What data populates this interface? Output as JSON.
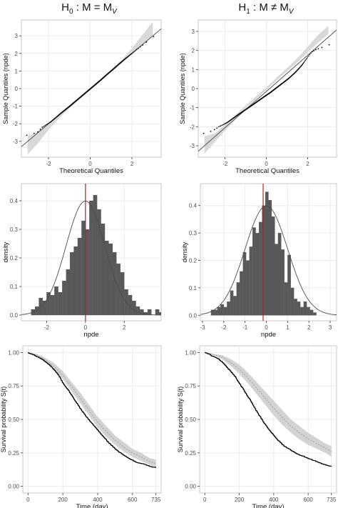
{
  "figure": {
    "col_titles": [
      {
        "base": "H",
        "sub": "0",
        "rest": " : M = M",
        "sub2": "V"
      },
      {
        "base": "H",
        "sub": "1",
        "rest": " : M ≠ M",
        "sub2": "V"
      }
    ]
  },
  "colors": {
    "panel_bg": "#ffffff",
    "grid": "#ebebeb",
    "ribbon": "#d9d9d9",
    "points": "#000000",
    "refline": "#4d4d4d",
    "bars": "#595959",
    "density_curve": "#4d4d4d",
    "vline": "#b22222",
    "ci_band": "#d3d3d3",
    "ci_median": "#9e9e9e",
    "km": "#000000"
  },
  "chart_data": [
    {
      "id": "qq-h0",
      "type": "scatter",
      "xlabel": "Theoretical Quantiles",
      "ylabel": "Sample Quantiles (npde)",
      "xlim": [
        -3.3,
        3.4
      ],
      "ylim": [
        -3.9,
        3.9
      ],
      "xticks": [
        -2,
        0,
        2
      ],
      "yticks": [
        -3,
        -2,
        -1,
        0,
        1,
        2,
        3
      ],
      "grid": true,
      "refline": {
        "slope": 1,
        "intercept": 0
      },
      "band": {
        "x": [
          -3.0,
          -2.5,
          -2.0,
          -1.5,
          -1.0,
          -0.5,
          0,
          0.5,
          1.0,
          1.5,
          2.0,
          2.5,
          3.0
        ],
        "low": [
          -3.75,
          -3.1,
          -2.35,
          -1.7,
          -1.12,
          -0.58,
          -0.06,
          0.44,
          0.93,
          1.42,
          1.95,
          2.45,
          2.95
        ],
        "high": [
          -2.7,
          -2.45,
          -1.95,
          -1.42,
          -0.92,
          -0.43,
          0.06,
          0.58,
          1.1,
          1.62,
          2.3,
          3.05,
          3.8
        ]
      },
      "points_sample": {
        "x": [
          -2.9,
          -2.7,
          -2.5,
          -2.3,
          -2.1,
          -1.9,
          -1.6,
          -1.3,
          -1.0,
          -0.7,
          -0.4,
          -0.1,
          0.2,
          0.5,
          0.8,
          1.1,
          1.4,
          1.7,
          2.0,
          2.2,
          2.4,
          2.6,
          2.8,
          3.0
        ],
        "y": [
          -2.65,
          -2.55,
          -2.45,
          -2.2,
          -2.05,
          -1.9,
          -1.6,
          -1.3,
          -1.02,
          -0.72,
          -0.42,
          -0.12,
          0.18,
          0.48,
          0.8,
          1.1,
          1.42,
          1.72,
          2.0,
          2.2,
          2.38,
          2.55,
          2.75,
          2.95
        ]
      }
    },
    {
      "id": "qq-h1",
      "type": "scatter",
      "xlabel": "Theoretical Quantiles",
      "ylabel": "Sample Quantiles (npde)",
      "xlim": [
        -3.3,
        3.4
      ],
      "ylim": [
        -3.6,
        3.6
      ],
      "xticks": [
        -2,
        0,
        2
      ],
      "yticks": [
        -3,
        -2,
        -1,
        0,
        1,
        2,
        3
      ],
      "grid": true,
      "refline": {
        "slope": 0.95,
        "intercept": -0.15
      },
      "band": {
        "x": [
          -3.0,
          -2.5,
          -2.0,
          -1.5,
          -1.0,
          -0.5,
          0,
          0.5,
          1.0,
          1.5,
          2.0,
          2.5,
          3.0
        ],
        "low": [
          -3.4,
          -2.8,
          -2.2,
          -1.62,
          -1.08,
          -0.58,
          -0.07,
          0.42,
          0.9,
          1.38,
          1.9,
          2.4,
          2.85
        ],
        "high": [
          -2.5,
          -2.35,
          -1.9,
          -1.38,
          -0.88,
          -0.4,
          0.07,
          0.58,
          1.08,
          1.6,
          2.2,
          2.8,
          3.3
        ]
      },
      "points_sample": {
        "x": [
          -2.9,
          -2.7,
          -2.5,
          -2.3,
          -2.1,
          -1.9,
          -1.6,
          -1.3,
          -1.0,
          -0.7,
          -0.4,
          -0.1,
          0.2,
          0.5,
          0.8,
          1.1,
          1.4,
          1.7,
          2.0,
          2.2,
          2.4,
          2.6,
          2.8,
          3.0
        ],
        "y": [
          -2.35,
          -2.25,
          -2.15,
          -2.0,
          -1.9,
          -1.78,
          -1.55,
          -1.32,
          -1.1,
          -0.88,
          -0.65,
          -0.42,
          -0.2,
          0.05,
          0.3,
          0.55,
          0.85,
          1.2,
          1.65,
          1.92,
          2.05,
          2.12,
          2.2,
          2.3
        ]
      }
    },
    {
      "id": "hist-h0",
      "type": "bar",
      "xlabel": "npde",
      "ylabel": "density",
      "xlim": [
        -3.3,
        3.9
      ],
      "ylim": [
        -0.02,
        0.46
      ],
      "xticks": [
        -2,
        0,
        2
      ],
      "yticks": [
        0.0,
        0.1,
        0.2,
        0.3,
        0.4
      ],
      "ytick_labels": [
        "0.0",
        "0.1",
        "0.2",
        "0.3",
        "0.4"
      ],
      "grid": true,
      "bins": {
        "start": -2.8,
        "width": 0.2,
        "values": [
          0.02,
          0.03,
          0.06,
          0.05,
          0.08,
          0.07,
          0.1,
          0.08,
          0.12,
          0.16,
          0.22,
          0.24,
          0.27,
          0.33,
          0.3,
          0.4,
          0.42,
          0.37,
          0.32,
          0.26,
          0.25,
          0.22,
          0.18,
          0.15,
          0.09,
          0.07,
          0.05,
          0.03,
          0.02,
          0.01,
          0.02,
          0.0,
          0.02,
          0.01
        ]
      },
      "curve": {
        "mean": 0.0,
        "sd": 1.0
      },
      "vline": 0.0
    },
    {
      "id": "hist-h1",
      "type": "bar",
      "xlabel": "npde",
      "ylabel": "density",
      "xlim": [
        -3.1,
        3.3
      ],
      "ylim": [
        -0.02,
        0.48
      ],
      "xticks": [
        -3,
        -2,
        -1,
        0,
        1,
        2,
        3
      ],
      "yticks": [
        0.0,
        0.1,
        0.2,
        0.3,
        0.4
      ],
      "ytick_labels": [
        "0.0",
        "0.1",
        "0.2",
        "0.3",
        "0.4"
      ],
      "grid": true,
      "bins": {
        "start": -2.6,
        "width": 0.15,
        "values": [
          0.02,
          0.02,
          0.03,
          0.04,
          0.03,
          0.05,
          0.09,
          0.07,
          0.12,
          0.16,
          0.23,
          0.2,
          0.25,
          0.32,
          0.3,
          0.34,
          0.4,
          0.45,
          0.42,
          0.36,
          0.26,
          0.3,
          0.24,
          0.12,
          0.22,
          0.1,
          0.06,
          0.05,
          0.03,
          0.05,
          0.03,
          0.02,
          0.01,
          0.0,
          0.0,
          0.0
        ]
      },
      "curve": {
        "mean": 0.0,
        "sd": 1.0
      },
      "vline": -0.15
    },
    {
      "id": "surv-h0",
      "type": "line",
      "xlabel": "Time (day)",
      "ylabel": "Survival probability S(t)",
      "xlim": [
        -30,
        765
      ],
      "ylim": [
        -0.05,
        1.05
      ],
      "xticks": [
        0,
        200,
        400,
        600,
        735
      ],
      "yticks": [
        0.0,
        0.25,
        0.5,
        0.75,
        1.0
      ],
      "ytick_labels": [
        "0.00",
        "0.25",
        "0.50",
        "0.75",
        "1.00"
      ],
      "grid": true,
      "km": {
        "x": [
          0,
          20,
          50,
          80,
          100,
          120,
          150,
          180,
          200,
          230,
          260,
          300,
          340,
          380,
          420,
          460,
          500,
          540,
          580,
          620,
          660,
          700,
          735
        ],
        "y": [
          1.0,
          0.99,
          0.97,
          0.95,
          0.93,
          0.91,
          0.87,
          0.82,
          0.77,
          0.72,
          0.66,
          0.58,
          0.51,
          0.45,
          0.39,
          0.33,
          0.28,
          0.24,
          0.21,
          0.18,
          0.17,
          0.15,
          0.14
        ]
      },
      "band": {
        "x": [
          0,
          50,
          100,
          150,
          200,
          250,
          300,
          350,
          400,
          450,
          500,
          550,
          600,
          650,
          700,
          735
        ],
        "low": [
          1.0,
          0.97,
          0.93,
          0.87,
          0.8,
          0.71,
          0.62,
          0.53,
          0.44,
          0.37,
          0.31,
          0.26,
          0.22,
          0.19,
          0.16,
          0.14
        ],
        "high": [
          1.0,
          0.99,
          0.96,
          0.92,
          0.86,
          0.78,
          0.7,
          0.61,
          0.52,
          0.45,
          0.38,
          0.33,
          0.28,
          0.25,
          0.21,
          0.2
        ]
      }
    },
    {
      "id": "surv-h1",
      "type": "line",
      "xlabel": "Time (day)",
      "ylabel": "Survival probability S(t)",
      "xlim": [
        -30,
        765
      ],
      "ylim": [
        -0.05,
        1.05
      ],
      "xticks": [
        0,
        200,
        400,
        600,
        735
      ],
      "yticks": [
        0.0,
        0.25,
        0.5,
        0.75,
        1.0
      ],
      "ytick_labels": [
        "0.00",
        "0.25",
        "0.50",
        "0.75",
        "1.00"
      ],
      "grid": true,
      "km": {
        "x": [
          0,
          20,
          50,
          80,
          100,
          120,
          150,
          180,
          200,
          230,
          260,
          300,
          340,
          380,
          420,
          460,
          500,
          540,
          580,
          620,
          660,
          700,
          735
        ],
        "y": [
          1.0,
          0.99,
          0.97,
          0.95,
          0.93,
          0.9,
          0.86,
          0.81,
          0.77,
          0.71,
          0.65,
          0.56,
          0.48,
          0.41,
          0.35,
          0.3,
          0.27,
          0.24,
          0.22,
          0.2,
          0.18,
          0.16,
          0.15
        ]
      },
      "band": {
        "x": [
          0,
          50,
          100,
          150,
          200,
          250,
          300,
          350,
          400,
          450,
          500,
          550,
          600,
          650,
          700,
          735
        ],
        "low": [
          1.0,
          0.98,
          0.95,
          0.9,
          0.84,
          0.77,
          0.69,
          0.61,
          0.53,
          0.46,
          0.4,
          0.35,
          0.31,
          0.28,
          0.25,
          0.22
        ],
        "high": [
          1.0,
          0.99,
          0.98,
          0.95,
          0.91,
          0.85,
          0.78,
          0.71,
          0.64,
          0.57,
          0.5,
          0.45,
          0.4,
          0.36,
          0.32,
          0.3
        ]
      }
    }
  ]
}
